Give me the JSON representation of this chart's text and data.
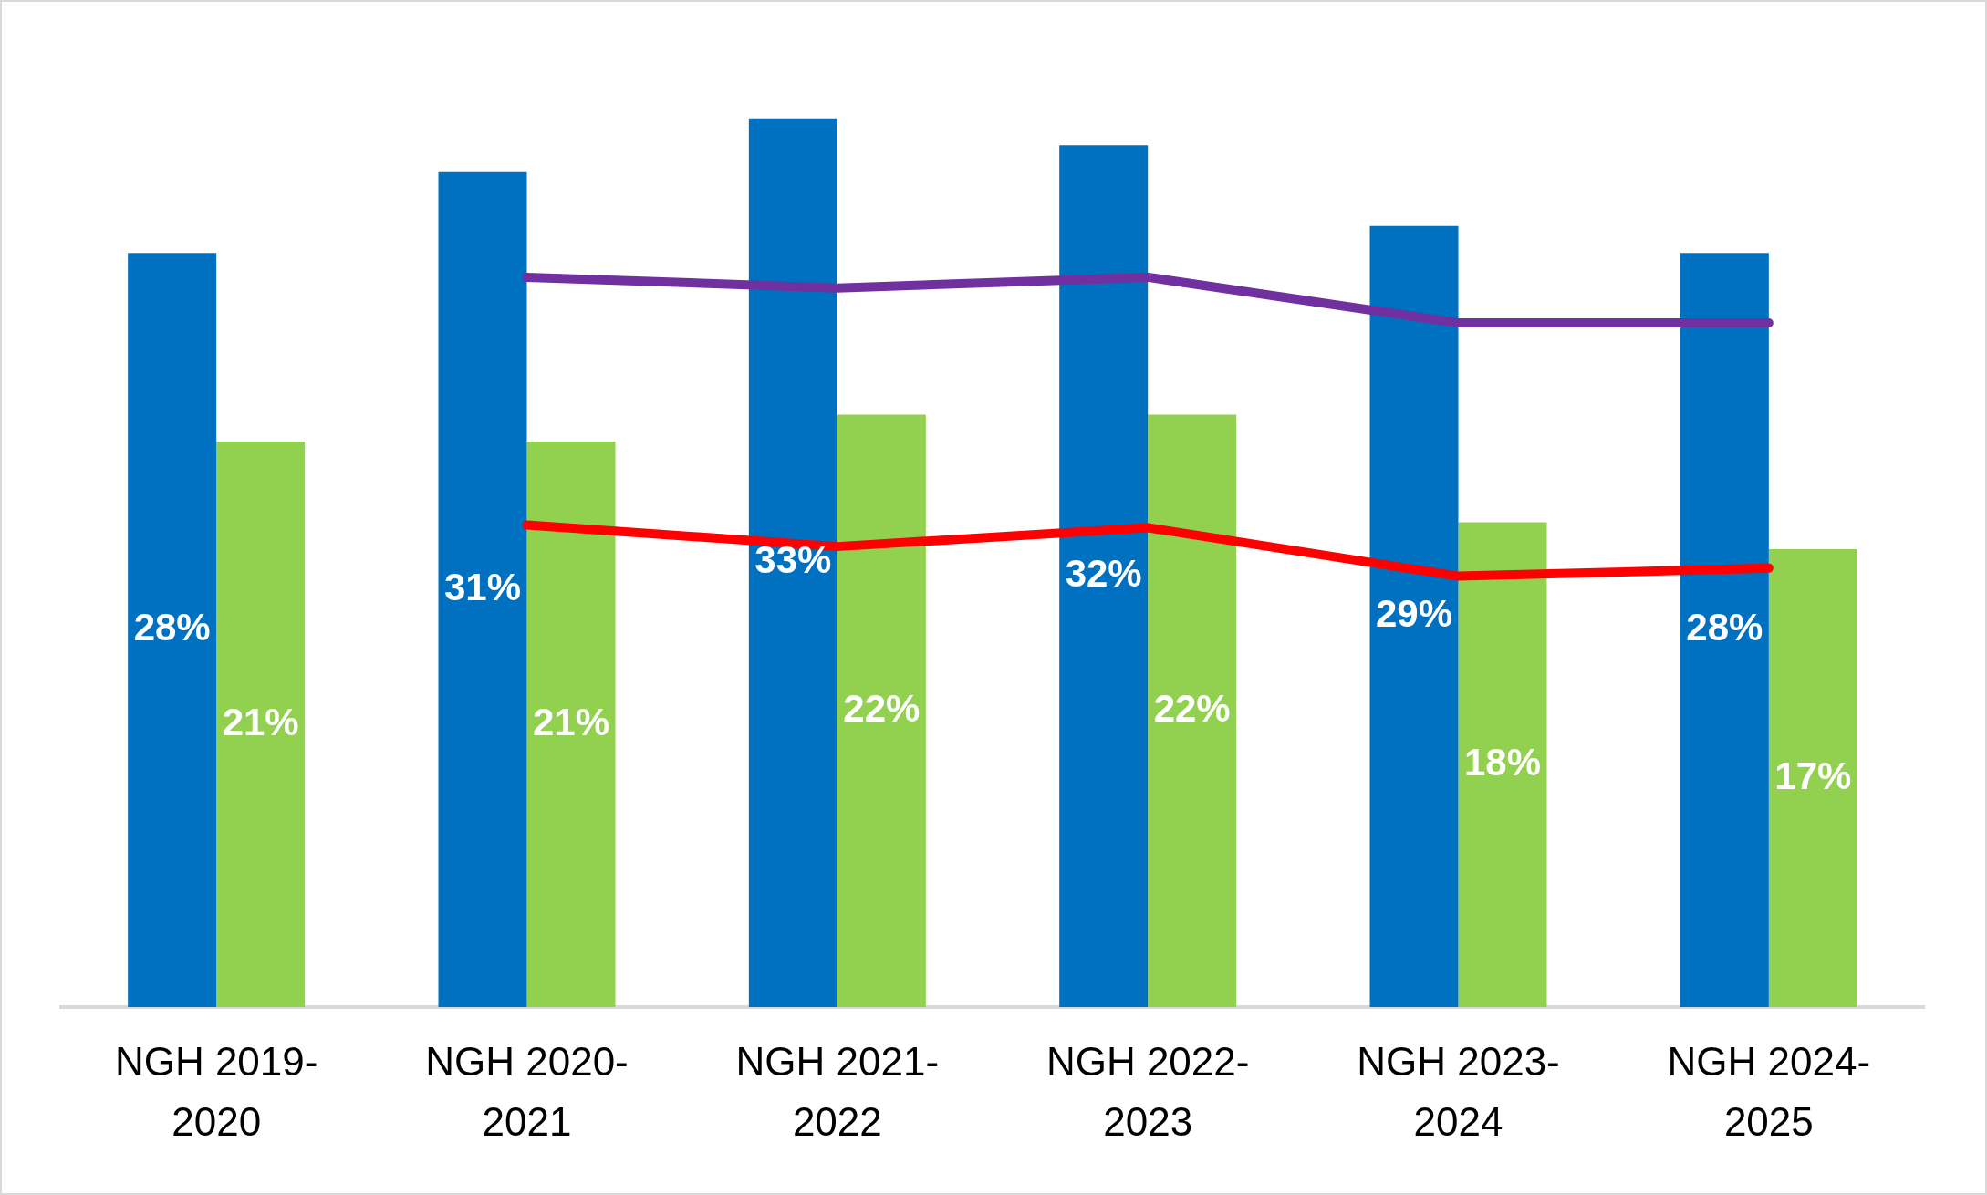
{
  "chart_data": {
    "type": "bar",
    "categories": [
      "NGH 2019-2020",
      "NGH 2020-2021",
      "NGH 2021-2022",
      "NGH 2022-2023",
      "NGH 2023-2024",
      "NGH 2024-2025"
    ],
    "series": [
      {
        "color": "#0070c0",
        "values": [
          28,
          31,
          33,
          32,
          29,
          28
        ],
        "value_labels": [
          "28%",
          "31%",
          "33%",
          "32%",
          "29%",
          "28%"
        ]
      },
      {
        "color": "#92d050",
        "values": [
          21,
          21,
          22,
          22,
          18,
          17
        ],
        "value_labels": [
          "21%",
          "21%",
          "22%",
          "22%",
          "18%",
          "17%"
        ]
      },
      {
        "type": "line",
        "color": "#7030a0",
        "values": [
          null,
          27.1,
          26.7,
          27.1,
          25.4,
          25.4
        ]
      },
      {
        "type": "line",
        "color": "#ff0000",
        "values": [
          null,
          17.9,
          17.1,
          17.8,
          16.0,
          16.3
        ]
      }
    ],
    "grid": false,
    "legend": false,
    "tick_labels": "x",
    "marker": "none",
    "line_style": "solid"
  }
}
